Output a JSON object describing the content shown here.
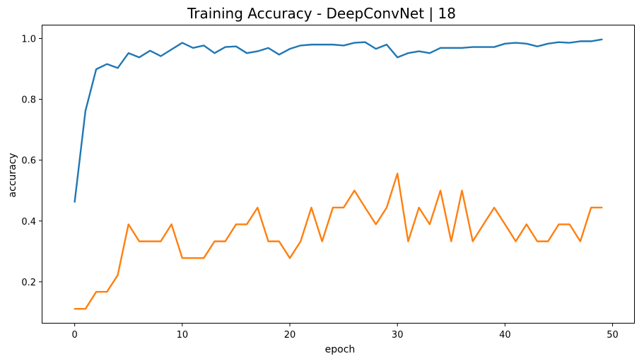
{
  "chart_data": {
    "type": "line",
    "title": "Training Accuracy - DeepConvNet | 18",
    "xlabel": "epoch",
    "ylabel": "accuracy",
    "xlim": [
      -3,
      52
    ],
    "ylim": [
      0.065,
      1.043
    ],
    "xticks": [
      0,
      10,
      20,
      30,
      40,
      50
    ],
    "yticks": [
      0.2,
      0.4,
      0.6,
      0.8,
      1.0
    ],
    "ytick_labels": [
      "0.2",
      "0.4",
      "0.6",
      "0.8",
      "1.0"
    ],
    "grid": false,
    "x": [
      0,
      1,
      2,
      3,
      4,
      5,
      6,
      7,
      8,
      9,
      10,
      11,
      12,
      13,
      14,
      15,
      16,
      17,
      18,
      19,
      20,
      21,
      22,
      23,
      24,
      25,
      26,
      27,
      28,
      29,
      30,
      31,
      32,
      33,
      34,
      35,
      36,
      37,
      38,
      39,
      40,
      41,
      42,
      43,
      44,
      45,
      46,
      47,
      48,
      49
    ],
    "series": [
      {
        "color": "#1f77b4",
        "values": [
          0.463,
          0.762,
          0.899,
          0.916,
          0.903,
          0.952,
          0.938,
          0.96,
          0.942,
          0.964,
          0.986,
          0.969,
          0.977,
          0.952,
          0.972,
          0.974,
          0.952,
          0.958,
          0.969,
          0.947,
          0.966,
          0.977,
          0.98,
          0.98,
          0.98,
          0.977,
          0.986,
          0.988,
          0.966,
          0.98,
          0.938,
          0.952,
          0.958,
          0.952,
          0.969,
          0.969,
          0.969,
          0.972,
          0.972,
          0.972,
          0.983,
          0.986,
          0.983,
          0.974,
          0.983,
          0.988,
          0.986,
          0.991,
          0.991,
          0.997
        ]
      },
      {
        "color": "#ff7f0e",
        "values": [
          0.111,
          0.111,
          0.167,
          0.167,
          0.222,
          0.389,
          0.333,
          0.333,
          0.333,
          0.389,
          0.278,
          0.278,
          0.278,
          0.333,
          0.333,
          0.389,
          0.389,
          0.444,
          0.333,
          0.333,
          0.278,
          0.333,
          0.444,
          0.333,
          0.444,
          0.444,
          0.5,
          0.444,
          0.389,
          0.444,
          0.556,
          0.333,
          0.444,
          0.389,
          0.5,
          0.333,
          0.5,
          0.333,
          0.389,
          0.444,
          0.389,
          0.333,
          0.389,
          0.333,
          0.333,
          0.389,
          0.389,
          0.333,
          0.444,
          0.444
        ]
      }
    ]
  }
}
